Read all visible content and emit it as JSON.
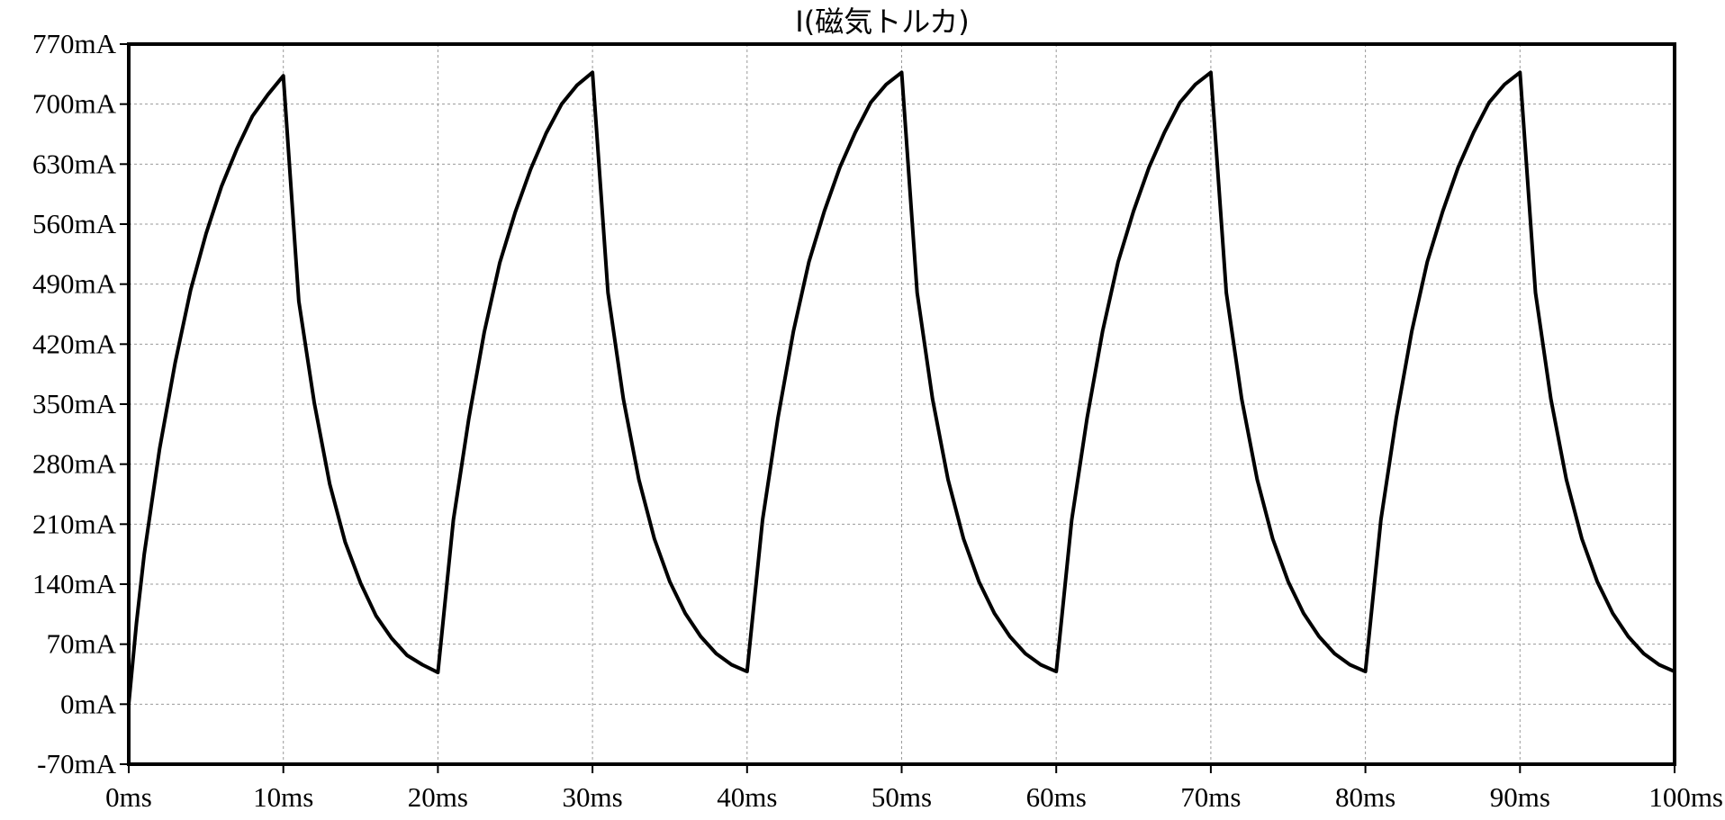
{
  "chart_data": {
    "type": "line",
    "title": "I(磁気トルカ)",
    "xlabel": "",
    "ylabel": "",
    "x_unit": "ms",
    "y_unit": "mA",
    "xlim": [
      0,
      100
    ],
    "ylim": [
      -70,
      770
    ],
    "x_ticks": [
      0,
      10,
      20,
      30,
      40,
      50,
      60,
      70,
      80,
      90,
      100
    ],
    "y_ticks": [
      -70,
      0,
      70,
      140,
      210,
      280,
      350,
      420,
      490,
      560,
      630,
      700,
      770
    ],
    "x_tick_labels": [
      "0ms",
      "10ms",
      "20ms",
      "30ms",
      "40ms",
      "50ms",
      "60ms",
      "70ms",
      "80ms",
      "90ms",
      "100ms"
    ],
    "y_tick_labels": [
      "-70mA",
      "0mA",
      "70mA",
      "140mA",
      "210mA",
      "280mA",
      "350mA",
      "420mA",
      "490mA",
      "560mA",
      "630mA",
      "700mA",
      "770mA"
    ],
    "grid": true,
    "legend": "none",
    "series": [
      {
        "color": "#000000",
        "x": [
          0,
          0.5,
          1,
          2,
          3,
          4,
          5,
          6,
          7,
          8,
          9,
          10,
          11,
          12,
          13,
          14,
          15,
          16,
          17,
          18,
          19,
          20,
          21,
          22,
          23,
          24,
          25,
          26,
          27,
          28,
          29,
          30,
          31,
          32,
          33,
          34,
          35,
          36,
          37,
          38,
          39,
          40,
          41,
          42,
          43,
          44,
          45,
          46,
          47,
          48,
          49,
          50,
          51,
          52,
          53,
          54,
          55,
          56,
          57,
          58,
          59,
          60,
          61,
          62,
          63,
          64,
          65,
          66,
          67,
          68,
          69,
          70,
          71,
          72,
          73,
          74,
          75,
          76,
          77,
          78,
          79,
          80,
          81,
          82,
          83,
          84,
          85,
          86,
          87,
          88,
          89,
          90,
          91,
          92,
          93,
          94,
          95,
          96,
          97,
          98,
          99,
          100
        ],
        "y": [
          0,
          95,
          175,
          298,
          398,
          483,
          549,
          604,
          648,
          686,
          711,
          733,
          470,
          352,
          257,
          189,
          141,
          103,
          77,
          57,
          46,
          37,
          215,
          333,
          434,
          515,
          574,
          624,
          666,
          700,
          722,
          737,
          480,
          356,
          262,
          193,
          143,
          106,
          79,
          59,
          46,
          38,
          215,
          334,
          435,
          516,
          575,
          626,
          667,
          702,
          723,
          737,
          480,
          356,
          262,
          193,
          143,
          106,
          79,
          59,
          46,
          38,
          215,
          334,
          435,
          516,
          575,
          626,
          667,
          702,
          723,
          737,
          480,
          356,
          262,
          193,
          143,
          106,
          79,
          59,
          46,
          38,
          215,
          334,
          435,
          516,
          575,
          626,
          667,
          702,
          723,
          737,
          480,
          356,
          262,
          193,
          143,
          106,
          79,
          59,
          46,
          38
        ]
      }
    ]
  }
}
